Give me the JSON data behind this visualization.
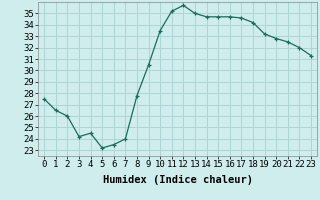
{
  "x": [
    0,
    1,
    2,
    3,
    4,
    5,
    6,
    7,
    8,
    9,
    10,
    11,
    12,
    13,
    14,
    15,
    16,
    17,
    18,
    19,
    20,
    21,
    22,
    23
  ],
  "y": [
    27.5,
    26.5,
    26.0,
    24.2,
    24.5,
    23.2,
    23.5,
    24.0,
    27.8,
    30.5,
    33.5,
    35.2,
    35.7,
    35.0,
    34.7,
    34.7,
    34.7,
    34.6,
    34.2,
    33.2,
    32.8,
    32.5,
    32.0,
    31.3
  ],
  "line_color": "#1a6b5a",
  "marker": "+",
  "bg_color": "#d0eded",
  "grid_color": "#aed4d4",
  "xlabel": "Humidex (Indice chaleur)",
  "xlim": [
    -0.5,
    23.5
  ],
  "ylim": [
    22.5,
    36
  ],
  "yticks": [
    23,
    24,
    25,
    26,
    27,
    28,
    29,
    30,
    31,
    32,
    33,
    34,
    35
  ],
  "xticks": [
    0,
    1,
    2,
    3,
    4,
    5,
    6,
    7,
    8,
    9,
    10,
    11,
    12,
    13,
    14,
    15,
    16,
    17,
    18,
    19,
    20,
    21,
    22,
    23
  ],
  "xlabel_fontsize": 7.5,
  "tick_fontsize": 6.5
}
